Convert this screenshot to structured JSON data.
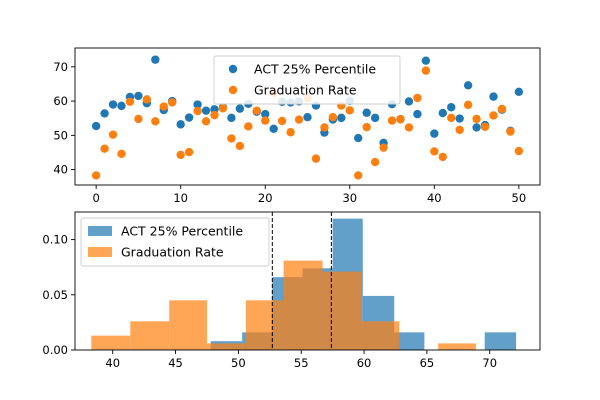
{
  "chart_data": [
    {
      "type": "scatter",
      "xlim": [
        -2.5,
        52.5
      ],
      "ylim": [
        35.5,
        75.5
      ],
      "xticks": [
        0,
        10,
        20,
        30,
        40,
        50
      ],
      "yticks": [
        40,
        50,
        60,
        70
      ],
      "grid": false,
      "legend_position": "top-center",
      "series": [
        {
          "name": "ACT 25% Percentile",
          "color": "#1f77b4",
          "x": [
            0,
            1,
            2,
            3,
            4,
            5,
            6,
            7,
            8,
            9,
            10,
            11,
            12,
            13,
            14,
            15,
            16,
            17,
            18,
            19,
            20,
            21,
            22,
            23,
            24,
            25,
            26,
            27,
            28,
            29,
            30,
            31,
            32,
            33,
            34,
            35,
            36,
            37,
            38,
            39,
            40,
            41,
            42,
            43,
            44,
            45,
            46,
            47,
            48,
            49,
            50
          ],
          "y": [
            52.7,
            56.4,
            59.0,
            58.6,
            61.2,
            61.5,
            59.4,
            72.1,
            57.4,
            60.0,
            53.2,
            55.2,
            59.0,
            57.2,
            57.6,
            58.2,
            55.1,
            57.8,
            59.2,
            56.9,
            56.2,
            51.9,
            59.8,
            59.6,
            59.9,
            55.3,
            58.7,
            50.8,
            54.6,
            55.1,
            60.1,
            49.2,
            56.6,
            55.1,
            47.8,
            59.1,
            54.7,
            59.9,
            56.2,
            71.8,
            50.5,
            56.5,
            58.2,
            54.9,
            64.6,
            52.3,
            53.0,
            61.3,
            57.5,
            51.3,
            62.7
          ]
        },
        {
          "name": "Graduation Rate",
          "color": "#ff7f0e",
          "x": [
            0,
            1,
            2,
            3,
            4,
            5,
            6,
            7,
            8,
            9,
            10,
            11,
            12,
            13,
            14,
            15,
            16,
            17,
            18,
            19,
            20,
            21,
            22,
            23,
            24,
            25,
            26,
            27,
            28,
            29,
            30,
            31,
            32,
            33,
            34,
            35,
            36,
            37,
            38,
            39,
            40,
            41,
            42,
            43,
            44,
            45,
            46,
            47,
            48,
            49,
            50
          ],
          "y": [
            38.3,
            46.1,
            50.2,
            44.6,
            59.8,
            54.8,
            60.5,
            54.1,
            58.4,
            59.6,
            44.3,
            45.1,
            57.1,
            54.1,
            55.9,
            57.9,
            49.1,
            46.9,
            52.6,
            57.2,
            54.3,
            62.3,
            54.2,
            50.9,
            54.6,
            60.8,
            43.2,
            52.3,
            55.3,
            58.7,
            57.3,
            38.3,
            52.4,
            42.2,
            46.4,
            54.3,
            54.7,
            52.3,
            60.9,
            68.9,
            45.3,
            43.7,
            55.1,
            51.6,
            58.9,
            54.8,
            52.5,
            55.8,
            57.7,
            51.1,
            45.4
          ]
        }
      ]
    },
    {
      "type": "bar",
      "subtype": "histogram",
      "xlim": [
        37.0,
        74.0
      ],
      "ylim": [
        0,
        0.125
      ],
      "xticks": [
        40,
        45,
        50,
        55,
        60,
        65,
        70
      ],
      "yticks": [
        0.0,
        0.05,
        0.1
      ],
      "ytick_labels": [
        "0.00",
        "0.05",
        "0.10"
      ],
      "grid": false,
      "legend_position": "upper-left",
      "vlines": [
        52.7,
        57.4
      ],
      "series": [
        {
          "name": "ACT 25% Percentile",
          "color": "#1f77b4",
          "alpha": 0.7,
          "bin_edges": [
            47.8,
            50.3,
            52.7,
            55.1,
            57.5,
            59.9,
            62.4,
            64.8,
            67.2,
            69.6,
            72.1
          ],
          "values": [
            0.008,
            0.016,
            0.066,
            0.074,
            0.119,
            0.049,
            0.016,
            0.0,
            0.0,
            0.016
          ]
        },
        {
          "name": "Graduation Rate",
          "color": "#ff7f0e",
          "alpha": 0.7,
          "bin_edges": [
            38.3,
            41.4,
            44.5,
            47.5,
            50.6,
            53.6,
            56.7,
            59.8,
            62.8,
            65.9,
            68.9
          ],
          "values": [
            0.013,
            0.026,
            0.045,
            0.006,
            0.045,
            0.081,
            0.071,
            0.026,
            0.0,
            0.006
          ]
        }
      ]
    }
  ]
}
